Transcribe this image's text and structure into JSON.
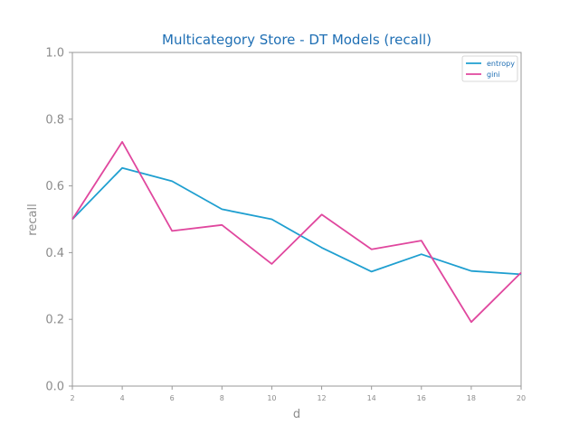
{
  "chart_data": {
    "type": "line",
    "title": "Multicategory Store - DT Models (recall)",
    "xlabel": "d",
    "ylabel": "recall",
    "x": [
      2,
      4,
      6,
      8,
      10,
      12,
      14,
      16,
      18,
      20
    ],
    "xlim": [
      2,
      20
    ],
    "ylim": [
      0.0,
      1.0
    ],
    "x_ticks": [
      "2",
      "4",
      "6",
      "8",
      "10",
      "12",
      "14",
      "16",
      "18",
      "20"
    ],
    "y_ticks": [
      "0.0",
      "0.2",
      "0.4",
      "0.6",
      "0.8",
      "1.0"
    ],
    "grid": false,
    "legend_position": "top-right",
    "series": [
      {
        "name": "entropy",
        "color": "#1f9fd0",
        "values": [
          0.5,
          0.654,
          0.614,
          0.53,
          0.5,
          0.415,
          0.343,
          0.395,
          0.345,
          0.335
        ]
      },
      {
        "name": "gini",
        "color": "#e0479e",
        "values": [
          0.5,
          0.732,
          0.465,
          0.483,
          0.366,
          0.514,
          0.41,
          0.436,
          0.192,
          0.34
        ]
      }
    ]
  }
}
